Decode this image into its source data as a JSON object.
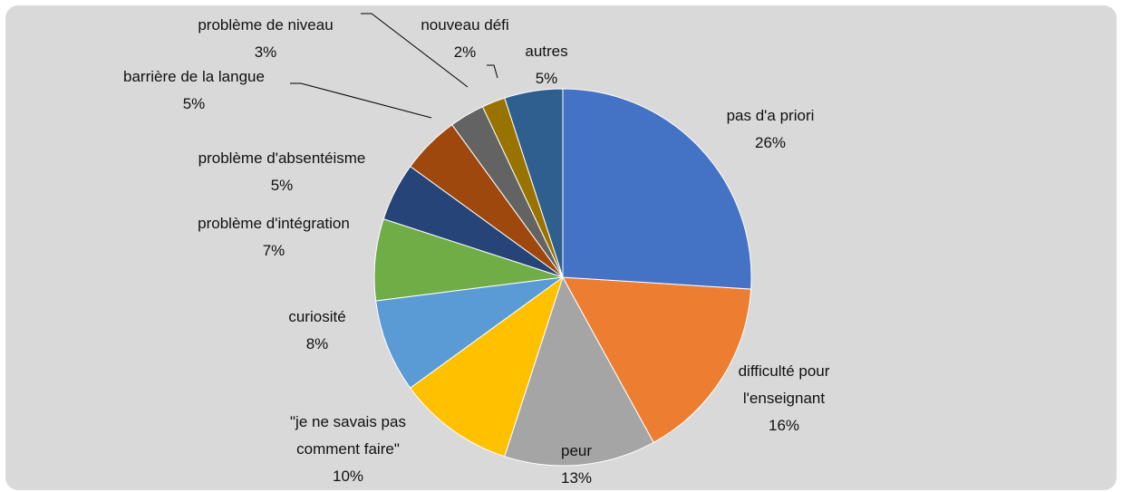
{
  "chart_data": {
    "type": "pie",
    "categories": [
      "pas d'a priori",
      "difficulté pour l'enseignant",
      "peur",
      "\"je ne savais pas comment faire\"",
      "curiosité",
      "problème d'intégration",
      "problème d'absentéisme",
      "barrière de la langue",
      "problème de niveau",
      "nouveau défi",
      "autres"
    ],
    "values": [
      26,
      16,
      13,
      10,
      8,
      7,
      5,
      5,
      3,
      2,
      5
    ],
    "value_labels": [
      "26%",
      "16%",
      "13%",
      "10%",
      "8%",
      "7%",
      "5%",
      "5%",
      "3%",
      "2%",
      "5%"
    ],
    "colors": [
      "#4472c4",
      "#ed7d31",
      "#a5a5a5",
      "#ffc000",
      "#5b9bd5",
      "#70ad47",
      "#264478",
      "#9e480e",
      "#636363",
      "#997300",
      "#2f5f8f"
    ]
  }
}
